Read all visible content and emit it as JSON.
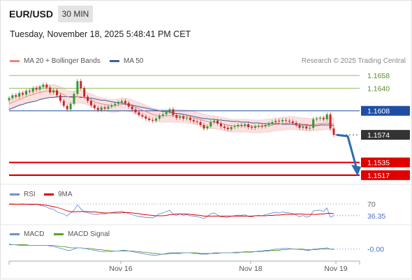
{
  "header": {
    "symbol": "EUR/USD",
    "timeframe": "30 MIN",
    "datetime": "Tuesday, November 18, 2025 5:48:41 PM CET"
  },
  "legend": {
    "ma20": "MA 20 + Bollinger Bands",
    "ma50": "MA 50",
    "credit": "Research © 2025 Trading Central"
  },
  "colors": {
    "ma20": "#f08080",
    "ma50": "#3a5fa0",
    "resistance": "#8fbf5a",
    "pivot": "#1f4ea3",
    "support": "#e00000",
    "current": "#333333",
    "arrow": "#2a6bb5",
    "rsi": "#6f8fd8",
    "rsi_ma": "#e00000",
    "macd": "#6f8fd8",
    "macd_signal": "#5aa02a"
  },
  "chart_data": [
    {
      "type": "line",
      "panel": "price",
      "levels": [
        {
          "label": "1.1658",
          "value": 1.1658,
          "kind": "resistance"
        },
        {
          "label": "1.1640",
          "value": 1.164,
          "kind": "resistance"
        },
        {
          "label": "1.1608",
          "value": 1.1608,
          "kind": "pivot"
        },
        {
          "label": "1.1574",
          "value": 1.1574,
          "kind": "current"
        },
        {
          "label": "1.1535",
          "value": 1.1535,
          "kind": "support"
        },
        {
          "label": "1.1517",
          "value": 1.1517,
          "kind": "support"
        }
      ],
      "close": [
        1.1626,
        1.163,
        1.1628,
        1.1633,
        1.1631,
        1.1636,
        1.1635,
        1.164,
        1.1638,
        1.1642,
        1.1645,
        1.1641,
        1.1634,
        1.1637,
        1.163,
        1.1622,
        1.1615,
        1.161,
        1.1618,
        1.1632,
        1.165,
        1.164,
        1.1628,
        1.1622,
        1.1616,
        1.1612,
        1.1609,
        1.1613,
        1.1611,
        1.1614,
        1.1616,
        1.1618,
        1.162,
        1.1622,
        1.1619,
        1.1614,
        1.161,
        1.1606,
        1.1602,
        1.16,
        1.1597,
        1.1595,
        1.1594,
        1.1597,
        1.1601,
        1.1603,
        1.1606,
        1.161,
        1.1602,
        1.1598,
        1.16,
        1.1597,
        1.1598,
        1.1595,
        1.1593,
        1.1592,
        1.1588,
        1.1583,
        1.1586,
        1.1592,
        1.1594,
        1.159,
        1.1586,
        1.1584,
        1.1582,
        1.1585,
        1.1586,
        1.1588,
        1.1587,
        1.1589,
        1.1585,
        1.1584,
        1.1586,
        1.1587,
        1.1586,
        1.1588,
        1.159,
        1.1592,
        1.1594,
        1.1593,
        1.1595,
        1.1594,
        1.1593,
        1.1591,
        1.1588,
        1.1584,
        1.1586,
        1.1583,
        1.1584,
        1.1596,
        1.1597,
        1.1598,
        1.1596,
        1.1603,
        1.1583,
        1.1574
      ],
      "ma20": [
        1.1618,
        1.162,
        1.1622,
        1.1624,
        1.1626,
        1.1628,
        1.163,
        1.1631,
        1.1633,
        1.1634,
        1.1635,
        1.1636,
        1.1636,
        1.1636,
        1.1635,
        1.1633,
        1.1631,
        1.1628,
        1.1627,
        1.1627,
        1.1628,
        1.1628,
        1.1627,
        1.1625,
        1.1623,
        1.1621,
        1.1619,
        1.1618,
        1.1617,
        1.1616,
        1.1615,
        1.1615,
        1.1616,
        1.1617,
        1.1617,
        1.1616,
        1.1615,
        1.1613,
        1.1611,
        1.1609,
        1.1607,
        1.1605,
        1.1603,
        1.1602,
        1.1601,
        1.1601,
        1.1601,
        1.1601,
        1.1601,
        1.1601,
        1.1601,
        1.16,
        1.16,
        1.1599,
        1.1598,
        1.1597,
        1.1596,
        1.1594,
        1.1593,
        1.1592,
        1.1592,
        1.1591,
        1.159,
        1.1589,
        1.1588,
        1.1587,
        1.1587,
        1.1587,
        1.1587,
        1.1587,
        1.1587,
        1.1586,
        1.1586,
        1.1586,
        1.1586,
        1.1587,
        1.1587,
        1.1588,
        1.1589,
        1.1589,
        1.159,
        1.159,
        1.1591,
        1.1591,
        1.159,
        1.159,
        1.1589,
        1.1589,
        1.1588,
        1.1589,
        1.1589,
        1.159,
        1.159,
        1.1591,
        1.159,
        1.1589
      ],
      "ma50": [
        1.161,
        1.1612,
        1.1614,
        1.1616,
        1.1617,
        1.1619,
        1.162,
        1.1621,
        1.1622,
        1.1624,
        1.1625,
        1.1626,
        1.1627,
        1.1627,
        1.1628,
        1.1628,
        1.1628,
        1.1628,
        1.1628,
        1.1628,
        1.1628,
        1.1627,
        1.1627,
        1.1626,
        1.1626,
        1.1625,
        1.1624,
        1.1623,
        1.1623,
        1.1622,
        1.1621,
        1.162,
        1.162,
        1.1619,
        1.1618,
        1.1617,
        1.1616,
        1.1615,
        1.1614,
        1.1613,
        1.1612,
        1.1611,
        1.161,
        1.1609,
        1.1608,
        1.1607,
        1.1607,
        1.1606,
        1.1605,
        1.1604,
        1.1604,
        1.1603,
        1.1602,
        1.1601,
        1.16,
        1.1599,
        1.1598,
        1.1597,
        1.1597,
        1.1596,
        1.1596,
        1.1595,
        1.1595,
        1.1594,
        1.1594,
        1.1593,
        1.1593,
        1.1593,
        1.1592,
        1.1592,
        1.1592,
        1.1591,
        1.1591,
        1.1591,
        1.159,
        1.159,
        1.159,
        1.159,
        1.159,
        1.159,
        1.1589,
        1.1589,
        1.1589,
        1.1589,
        1.1588,
        1.1588,
        1.1588,
        1.1588,
        1.1587,
        1.1587,
        1.1587,
        1.1588,
        1.1588,
        1.1588,
        1.1588,
        1.1587
      ],
      "bb_width": 0.0009,
      "forecast": {
        "from": 1.1574,
        "to": 1.1517
      },
      "x_ticks": [
        "Nov 16",
        "Nov 18",
        "Nov 19"
      ]
    },
    {
      "type": "line",
      "panel": "rsi",
      "legend": [
        "RSI",
        "9MA"
      ],
      "level_label": "70",
      "level": 70,
      "current_label": "36.35",
      "current": 36.35,
      "ylim": [
        20,
        80
      ],
      "rsi": [
        70,
        70,
        69,
        69,
        70,
        69,
        68,
        68,
        69,
        66,
        64,
        61,
        56,
        55,
        47,
        44,
        41,
        35,
        44,
        52,
        67,
        56,
        47,
        45,
        42,
        40,
        40,
        42,
        41,
        44,
        45,
        47,
        48,
        49,
        46,
        42,
        39,
        36,
        34,
        33,
        31,
        31,
        30,
        35,
        42,
        44,
        48,
        52,
        40,
        37,
        41,
        37,
        39,
        36,
        35,
        34,
        31,
        28,
        34,
        42,
        44,
        38,
        33,
        32,
        31,
        35,
        36,
        38,
        37,
        39,
        34,
        33,
        36,
        37,
        36,
        39,
        42,
        44,
        46,
        44,
        47,
        45,
        44,
        42,
        38,
        33,
        37,
        32,
        34,
        50,
        51,
        52,
        48,
        58,
        32,
        36.35
      ],
      "rsi_ma": [
        69,
        69,
        69,
        69,
        69,
        69,
        69,
        69,
        69,
        68,
        67,
        66,
        64,
        62,
        60,
        57,
        54,
        50,
        48,
        47,
        48,
        48,
        48,
        48,
        47,
        47,
        46,
        45,
        44,
        44,
        44,
        44,
        44,
        45,
        45,
        45,
        44,
        43,
        42,
        40,
        39,
        38,
        37,
        36,
        36,
        36,
        37,
        39,
        40,
        41,
        41,
        41,
        41,
        40,
        39,
        38,
        37,
        35,
        35,
        35,
        35,
        35,
        35,
        35,
        35,
        35,
        35,
        35,
        35,
        35,
        35,
        35,
        36,
        36,
        36,
        36,
        37,
        37,
        38,
        38,
        39,
        40,
        40,
        40,
        41,
        41,
        41,
        40,
        40,
        40,
        40,
        41,
        41,
        43,
        43,
        42
      ]
    },
    {
      "type": "line",
      "panel": "macd",
      "legend": [
        "MACD",
        "MACD Signal"
      ],
      "current_label": "-0.00",
      "current": -0.0,
      "ylim": [
        -0.0016,
        0.0012
      ],
      "macd": [
        0.0008,
        0.0007,
        0.0007,
        0.0006,
        0.0006,
        0.0006,
        0.0006,
        0.0006,
        0.0006,
        0.0006,
        0.0006,
        0.0006,
        0.0005,
        0.0004,
        0.0003,
        0.0001,
        0.0,
        -0.0002,
        -0.0002,
        0.0,
        0.0002,
        0.0002,
        0.0001,
        0.0,
        -0.0001,
        -0.0002,
        -0.0003,
        -0.0004,
        -0.0004,
        -0.0004,
        -0.0004,
        -0.0003,
        -0.0003,
        -0.0002,
        -0.0002,
        -0.0003,
        -0.0004,
        -0.0005,
        -0.0006,
        -0.0007,
        -0.0008,
        -0.0009,
        -0.001,
        -0.001,
        -0.0009,
        -0.0008,
        -0.0007,
        -0.0006,
        -0.0006,
        -0.0006,
        -0.0006,
        -0.0006,
        -0.0006,
        -0.0006,
        -0.0007,
        -0.0007,
        -0.0008,
        -0.0008,
        -0.0008,
        -0.0007,
        -0.0006,
        -0.0006,
        -0.0006,
        -0.0006,
        -0.0006,
        -0.0006,
        -0.0005,
        -0.0005,
        -0.0005,
        -0.0004,
        -0.0004,
        -0.0004,
        -0.0004,
        -0.0003,
        -0.0003,
        -0.0002,
        -0.0002,
        -0.0001,
        0.0,
        0.0,
        0.0001,
        0.0001,
        0.0001,
        0.0,
        0.0,
        -0.0001,
        -0.0001,
        -0.0002,
        -0.0002,
        0.0,
        0.0,
        0.0001,
        0.0001,
        0.0002,
        0.0,
        -0.0001
      ],
      "signal": [
        0.0007,
        0.0007,
        0.0007,
        0.0007,
        0.0007,
        0.0007,
        0.0006,
        0.0006,
        0.0006,
        0.0006,
        0.0006,
        0.0006,
        0.0006,
        0.0006,
        0.0005,
        0.0004,
        0.0004,
        0.0003,
        0.0002,
        0.0002,
        0.0002,
        0.0002,
        0.0001,
        0.0001,
        0.0001,
        0.0,
        -0.0001,
        -0.0001,
        -0.0002,
        -0.0002,
        -0.0003,
        -0.0003,
        -0.0003,
        -0.0003,
        -0.0003,
        -0.0003,
        -0.0003,
        -0.0004,
        -0.0004,
        -0.0005,
        -0.0005,
        -0.0006,
        -0.0007,
        -0.0007,
        -0.0008,
        -0.0008,
        -0.0008,
        -0.0007,
        -0.0007,
        -0.0007,
        -0.0007,
        -0.0006,
        -0.0006,
        -0.0006,
        -0.0006,
        -0.0006,
        -0.0007,
        -0.0007,
        -0.0007,
        -0.0007,
        -0.0007,
        -0.0007,
        -0.0006,
        -0.0006,
        -0.0006,
        -0.0006,
        -0.0006,
        -0.0006,
        -0.0005,
        -0.0005,
        -0.0005,
        -0.0005,
        -0.0004,
        -0.0004,
        -0.0004,
        -0.0003,
        -0.0003,
        -0.0002,
        -0.0002,
        -0.0002,
        -0.0001,
        -0.0001,
        0.0,
        0.0,
        0.0,
        0.0,
        0.0,
        -0.0001,
        -0.0001,
        -0.0001,
        -0.0001,
        0.0,
        0.0,
        0.0,
        0.0,
        0.0
      ]
    }
  ]
}
